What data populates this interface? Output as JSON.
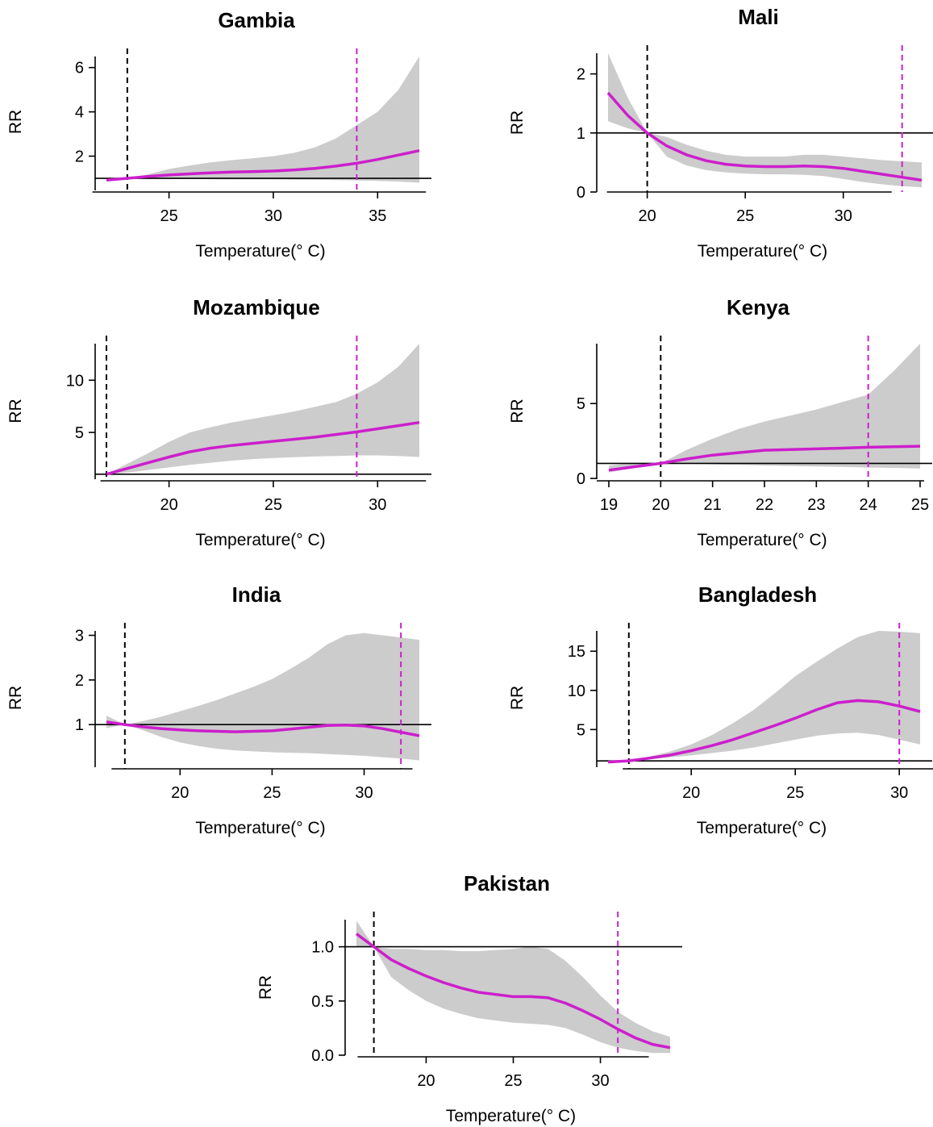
{
  "colors": {
    "curve": "#CC1FCC",
    "ci_band": "#CCCCCC",
    "axis": "#000000",
    "ref_dashed": "#000000",
    "background": "#FFFFFF"
  },
  "chart_data": [
    {
      "type": "line",
      "title": "Gambia",
      "xlabel": "Temperature(° C)",
      "ylabel": "RR",
      "xlim": [
        22,
        37
      ],
      "ylim": [
        0.6,
        6.5
      ],
      "xticks": [
        25,
        30,
        35
      ],
      "yticks": [
        2,
        4,
        6
      ],
      "reference_rr": 1,
      "min_risk_temperature": 23,
      "percentile_temperature": 34,
      "x": [
        22,
        23,
        24,
        25,
        26,
        27,
        28,
        29,
        30,
        31,
        32,
        33,
        34,
        35,
        36,
        37
      ],
      "rr": [
        0.92,
        1.0,
        1.08,
        1.15,
        1.2,
        1.25,
        1.28,
        1.3,
        1.33,
        1.38,
        1.45,
        1.55,
        1.68,
        1.85,
        2.05,
        2.25
      ],
      "ci_low": [
        0.88,
        1.0,
        0.99,
        0.98,
        0.97,
        0.96,
        0.95,
        0.95,
        0.95,
        0.94,
        0.93,
        0.92,
        0.9,
        0.88,
        0.85,
        0.8
      ],
      "ci_high": [
        0.97,
        1.0,
        1.18,
        1.42,
        1.58,
        1.72,
        1.82,
        1.9,
        2.0,
        2.15,
        2.4,
        2.8,
        3.4,
        4.0,
        5.0,
        6.5
      ]
    },
    {
      "type": "line",
      "title": "Mali",
      "xlabel": "Temperature(° C)",
      "ylabel": "RR",
      "xlim": [
        18,
        34
      ],
      "ylim": [
        0,
        2.35
      ],
      "xticks": [
        20,
        25,
        30
      ],
      "yticks": [
        0,
        1,
        2
      ],
      "reference_rr": 1,
      "min_risk_temperature": 20,
      "percentile_temperature": 33,
      "x": [
        18,
        19,
        20,
        21,
        22,
        23,
        24,
        25,
        26,
        27,
        28,
        29,
        30,
        31,
        32,
        33,
        34
      ],
      "rr": [
        1.68,
        1.3,
        1.0,
        0.78,
        0.63,
        0.53,
        0.47,
        0.44,
        0.43,
        0.43,
        0.44,
        0.43,
        0.4,
        0.35,
        0.3,
        0.25,
        0.2
      ],
      "ci_low": [
        1.2,
        1.08,
        1.0,
        0.6,
        0.45,
        0.37,
        0.33,
        0.31,
        0.3,
        0.3,
        0.29,
        0.27,
        0.22,
        0.17,
        0.13,
        0.1,
        0.08
      ],
      "ci_high": [
        2.35,
        1.6,
        1.0,
        0.93,
        0.8,
        0.7,
        0.63,
        0.6,
        0.6,
        0.6,
        0.63,
        0.63,
        0.6,
        0.57,
        0.54,
        0.52,
        0.5
      ]
    },
    {
      "type": "line",
      "title": "Mozambique",
      "xlabel": "Temperature(° C)",
      "ylabel": "RR",
      "xlim": [
        17,
        32
      ],
      "ylim": [
        0.6,
        13.5
      ],
      "xticks": [
        20,
        25,
        30
      ],
      "yticks": [
        5,
        10
      ],
      "reference_rr": 1,
      "min_risk_temperature": 17,
      "percentile_temperature": 29,
      "x": [
        17,
        18,
        19,
        20,
        21,
        22,
        23,
        24,
        25,
        26,
        27,
        28,
        29,
        30,
        31,
        32
      ],
      "rr": [
        1.0,
        1.55,
        2.1,
        2.65,
        3.15,
        3.5,
        3.75,
        3.95,
        4.15,
        4.35,
        4.55,
        4.8,
        5.05,
        5.35,
        5.65,
        5.95
      ],
      "ci_low": [
        1.0,
        1.15,
        1.4,
        1.65,
        1.9,
        2.1,
        2.3,
        2.45,
        2.55,
        2.62,
        2.7,
        2.75,
        2.8,
        2.8,
        2.75,
        2.65
      ],
      "ci_high": [
        1.0,
        2.0,
        3.0,
        4.1,
        5.0,
        5.5,
        5.95,
        6.3,
        6.65,
        7.0,
        7.45,
        7.9,
        8.7,
        9.8,
        11.3,
        13.5
      ]
    },
    {
      "type": "line",
      "title": "Kenya",
      "xlabel": "Temperature(° C)",
      "ylabel": "RR",
      "xlim": [
        19,
        25
      ],
      "ylim": [
        0,
        9
      ],
      "xticks": [
        19,
        20,
        21,
        22,
        23,
        24,
        25
      ],
      "yticks": [
        0,
        5
      ],
      "reference_rr": 1,
      "min_risk_temperature": 20,
      "percentile_temperature": 24,
      "x": [
        19,
        19.5,
        20,
        20.5,
        21,
        21.5,
        22,
        22.5,
        23,
        23.5,
        24,
        24.5,
        25
      ],
      "rr": [
        0.55,
        0.78,
        1.0,
        1.3,
        1.55,
        1.72,
        1.88,
        1.93,
        1.97,
        2.02,
        2.08,
        2.12,
        2.15
      ],
      "ci_low": [
        0.4,
        0.7,
        1.0,
        0.98,
        0.94,
        0.9,
        0.86,
        0.83,
        0.8,
        0.77,
        0.73,
        0.7,
        0.66
      ],
      "ci_high": [
        0.85,
        1.05,
        1.0,
        1.9,
        2.65,
        3.3,
        3.8,
        4.2,
        4.6,
        5.1,
        5.6,
        7.2,
        9.0
      ]
    },
    {
      "type": "line",
      "title": "India",
      "xlabel": "Temperature(° C)",
      "ylabel": "RR",
      "xlim": [
        16,
        33
      ],
      "ylim": [
        0.1,
        3.1
      ],
      "xticks": [
        20,
        25,
        30
      ],
      "yticks": [
        1,
        2,
        3
      ],
      "reference_rr": 1,
      "min_risk_temperature": 17,
      "percentile_temperature": 32,
      "x": [
        16,
        17,
        18,
        19,
        20,
        21,
        22,
        23,
        24,
        25,
        26,
        27,
        28,
        29,
        30,
        31,
        32,
        33
      ],
      "rr": [
        1.06,
        1.0,
        0.95,
        0.91,
        0.88,
        0.86,
        0.85,
        0.84,
        0.85,
        0.86,
        0.9,
        0.94,
        0.98,
        0.99,
        0.97,
        0.91,
        0.83,
        0.75
      ],
      "ci_low": [
        0.92,
        1.0,
        0.87,
        0.72,
        0.6,
        0.52,
        0.46,
        0.42,
        0.4,
        0.38,
        0.37,
        0.36,
        0.34,
        0.32,
        0.3,
        0.27,
        0.24,
        0.2
      ],
      "ci_high": [
        1.2,
        1.0,
        1.08,
        1.18,
        1.3,
        1.42,
        1.55,
        1.7,
        1.85,
        2.02,
        2.25,
        2.5,
        2.8,
        3.0,
        3.05,
        3.0,
        2.95,
        2.9
      ]
    },
    {
      "type": "line",
      "title": "Bangladesh",
      "xlabel": "Temperature(° C)",
      "ylabel": "RR",
      "xlim": [
        16,
        31
      ],
      "ylim": [
        0.5,
        17.6
      ],
      "xticks": [
        20,
        25,
        30
      ],
      "yticks": [
        5,
        10,
        15
      ],
      "reference_rr": 1,
      "min_risk_temperature": 17,
      "percentile_temperature": 30,
      "x": [
        16,
        17,
        18,
        19,
        20,
        21,
        22,
        23,
        24,
        25,
        26,
        27,
        28,
        29,
        30,
        31
      ],
      "rr": [
        0.85,
        1.0,
        1.35,
        1.75,
        2.3,
        2.95,
        3.7,
        4.6,
        5.5,
        6.45,
        7.5,
        8.4,
        8.7,
        8.55,
        8.0,
        7.3
      ],
      "ci_low": [
        0.75,
        1.0,
        1.2,
        1.45,
        1.7,
        2.0,
        2.3,
        2.7,
        3.2,
        3.7,
        4.2,
        4.5,
        4.6,
        4.3,
        3.7,
        3.1
      ],
      "ci_high": [
        0.95,
        1.0,
        1.55,
        2.2,
        3.1,
        4.3,
        5.8,
        7.5,
        9.6,
        11.8,
        13.6,
        15.3,
        16.8,
        17.6,
        17.5,
        17.3
      ]
    },
    {
      "type": "line",
      "title": "Pakistan",
      "xlabel": "Temperature(° C)",
      "ylabel": "RR",
      "xlim": [
        16,
        34
      ],
      "ylim": [
        0,
        1.25
      ],
      "xticks": [
        20,
        25,
        30
      ],
      "yticks": [
        0.0,
        0.5,
        1.0
      ],
      "ytick_labels": [
        "0.0",
        "0.5",
        "1.0"
      ],
      "reference_rr": 1,
      "min_risk_temperature": 17,
      "percentile_temperature": 31,
      "x": [
        16,
        17,
        18,
        19,
        20,
        21,
        22,
        23,
        24,
        25,
        26,
        27,
        28,
        29,
        30,
        31,
        32,
        33,
        34
      ],
      "rr": [
        1.12,
        1.0,
        0.88,
        0.8,
        0.73,
        0.67,
        0.62,
        0.58,
        0.56,
        0.54,
        0.54,
        0.53,
        0.48,
        0.41,
        0.33,
        0.24,
        0.16,
        0.1,
        0.07
      ],
      "ci_low": [
        1.0,
        1.0,
        0.72,
        0.6,
        0.5,
        0.43,
        0.38,
        0.34,
        0.32,
        0.3,
        0.29,
        0.28,
        0.25,
        0.19,
        0.12,
        0.07,
        0.04,
        0.02,
        0.02
      ],
      "ci_high": [
        1.24,
        1.0,
        0.98,
        0.98,
        0.97,
        0.97,
        0.96,
        0.96,
        0.97,
        0.98,
        1.0,
        0.98,
        0.87,
        0.72,
        0.55,
        0.4,
        0.3,
        0.22,
        0.17
      ]
    }
  ]
}
